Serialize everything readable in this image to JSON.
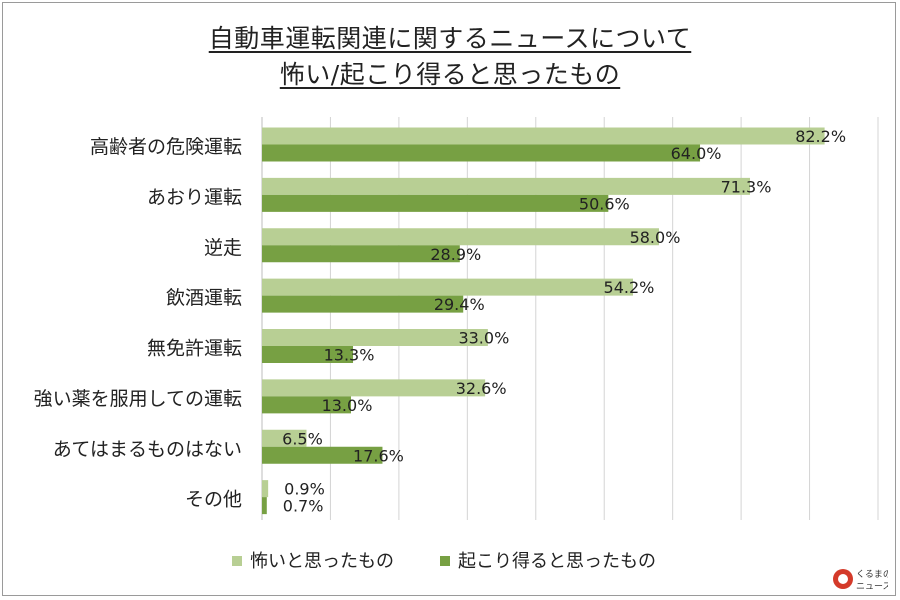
{
  "chart_data": {
    "type": "bar",
    "orientation": "horizontal",
    "title": [
      "自動車運転関連に関するニュースについて",
      "怖い/起こり得ると思ったもの"
    ],
    "categories": [
      "高齢者の危険運転",
      "あおり運転",
      "逆走",
      "飲酒運転",
      "無免許運転",
      "強い薬を服用しての運転",
      "あてはまるものはない",
      "その他"
    ],
    "series": [
      {
        "name": "怖いと思ったもの",
        "values": [
          82.2,
          71.3,
          58.0,
          54.2,
          33.0,
          32.6,
          6.5,
          0.9
        ],
        "color": "#b8cf94"
      },
      {
        "name": "起こり得ると思ったもの",
        "values": [
          64.0,
          50.6,
          28.9,
          29.4,
          13.3,
          13.0,
          17.6,
          0.7
        ],
        "color": "#77a043"
      }
    ],
    "value_suffix": "%",
    "xlim": [
      0,
      90
    ],
    "grid": "vertical",
    "legend_position": "bottom"
  },
  "brand": {
    "logo_line1": "くるまの",
    "logo_line2": "ニュース"
  }
}
